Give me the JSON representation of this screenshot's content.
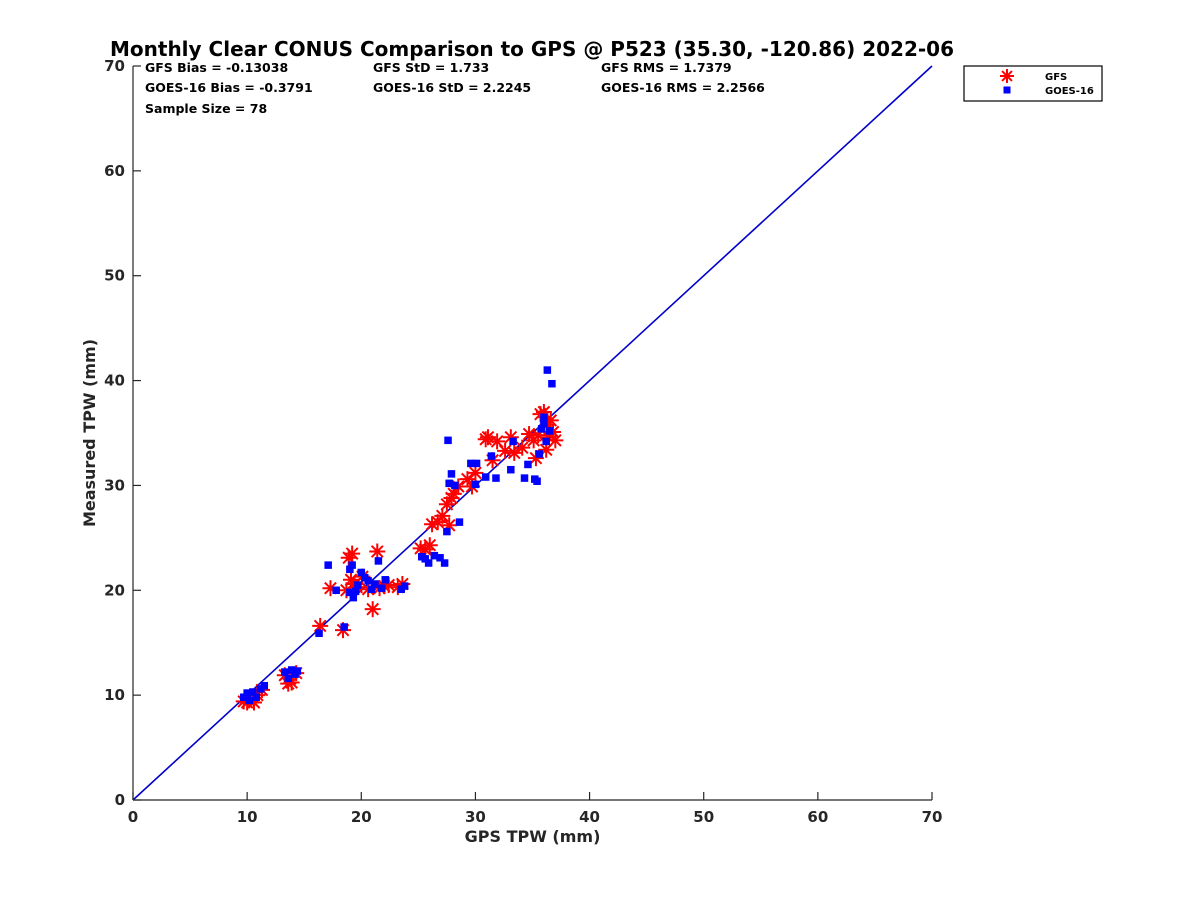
{
  "chart_data": {
    "type": "scatter",
    "title": "Monthly Clear CONUS Comparison to GPS @ P523 (35.30, -120.86) 2022-06",
    "xlabel": "GPS TPW (mm)",
    "ylabel": "Measured TPW (mm)",
    "xlim": [
      0,
      70
    ],
    "ylim": [
      0,
      70
    ],
    "xticks": [
      0,
      10,
      20,
      30,
      40,
      50,
      60,
      70
    ],
    "yticks": [
      0,
      10,
      20,
      30,
      40,
      50,
      60,
      70
    ],
    "grid": false,
    "legend_position": "outside-top-right",
    "stats": [
      [
        "GFS Bias = -0.13038",
        "GFS StD = 1.733",
        "GFS RMS = 1.7379"
      ],
      [
        "GOES-16 Bias = -0.3791",
        "GOES-16 StD = 2.2245",
        "GOES-16 RMS = 2.2566"
      ],
      [
        "Sample Size = 78",
        "",
        ""
      ]
    ],
    "reference_line": {
      "x": [
        0,
        70
      ],
      "y": [
        0,
        70
      ],
      "color": "#0000cc"
    },
    "series": [
      {
        "name": "GFS",
        "marker": "asterisk",
        "color": "#ff0000",
        "points": [
          [
            9.7,
            9.4
          ],
          [
            10.0,
            9.3
          ],
          [
            10.3,
            9.6
          ],
          [
            10.6,
            9.3
          ],
          [
            10.9,
            10.0
          ],
          [
            11.3,
            10.5
          ],
          [
            13.3,
            11.9
          ],
          [
            13.6,
            11.1
          ],
          [
            13.9,
            11.2
          ],
          [
            14.3,
            12.1
          ],
          [
            16.4,
            16.6
          ],
          [
            17.3,
            20.2
          ],
          [
            18.4,
            16.2
          ],
          [
            18.7,
            20.0
          ],
          [
            18.9,
            23.1
          ],
          [
            19.2,
            23.5
          ],
          [
            19.1,
            21.0
          ],
          [
            19.4,
            20.6
          ],
          [
            19.6,
            20.3
          ],
          [
            20.1,
            21.3
          ],
          [
            20.6,
            20.1
          ],
          [
            21.0,
            18.2
          ],
          [
            21.4,
            23.7
          ],
          [
            21.6,
            20.2
          ],
          [
            22.0,
            20.4
          ],
          [
            22.4,
            20.5
          ],
          [
            23.2,
            20.3
          ],
          [
            23.6,
            20.6
          ],
          [
            25.2,
            24.0
          ],
          [
            25.6,
            23.9
          ],
          [
            26.0,
            24.3
          ],
          [
            26.2,
            26.3
          ],
          [
            26.7,
            26.5
          ],
          [
            27.1,
            27.1
          ],
          [
            27.5,
            28.2
          ],
          [
            27.7,
            26.2
          ],
          [
            27.9,
            28.8
          ],
          [
            28.1,
            29.2
          ],
          [
            28.5,
            29.9
          ],
          [
            29.3,
            30.6
          ],
          [
            29.7,
            29.9
          ],
          [
            30.0,
            31.2
          ],
          [
            31.1,
            34.6
          ],
          [
            30.9,
            34.4
          ],
          [
            31.5,
            32.4
          ],
          [
            31.9,
            34.2
          ],
          [
            32.6,
            33.3
          ],
          [
            33.1,
            34.6
          ],
          [
            33.4,
            33.1
          ],
          [
            34.1,
            33.6
          ],
          [
            34.7,
            34.9
          ],
          [
            35.1,
            34.3
          ],
          [
            35.3,
            32.6
          ],
          [
            35.5,
            34.8
          ],
          [
            35.7,
            36.8
          ],
          [
            36.0,
            37.0
          ],
          [
            36.2,
            33.4
          ],
          [
            36.4,
            34.6
          ],
          [
            36.6,
            36.2
          ],
          [
            36.8,
            35.1
          ],
          [
            37.0,
            34.3
          ],
          [
            36.3,
            35.8
          ]
        ]
      },
      {
        "name": "GOES-16",
        "marker": "square",
        "color": "#0000ff",
        "points": [
          [
            9.7,
            9.8
          ],
          [
            10.0,
            10.2
          ],
          [
            10.2,
            9.5
          ],
          [
            10.5,
            10.3
          ],
          [
            10.8,
            9.8
          ],
          [
            11.2,
            10.6
          ],
          [
            11.5,
            10.9
          ],
          [
            13.3,
            12.2
          ],
          [
            13.6,
            11.6
          ],
          [
            13.9,
            12.4
          ],
          [
            14.2,
            12.0
          ],
          [
            14.4,
            12.3
          ],
          [
            16.3,
            15.9
          ],
          [
            17.1,
            22.4
          ],
          [
            17.8,
            20.0
          ],
          [
            18.5,
            16.5
          ],
          [
            19.0,
            22.0
          ],
          [
            19.2,
            22.4
          ],
          [
            19.0,
            19.8
          ],
          [
            19.3,
            19.3
          ],
          [
            19.5,
            19.9
          ],
          [
            19.7,
            20.5
          ],
          [
            20.0,
            21.7
          ],
          [
            20.3,
            21.2
          ],
          [
            20.6,
            20.9
          ],
          [
            20.9,
            20.1
          ],
          [
            21.2,
            20.6
          ],
          [
            21.5,
            22.8
          ],
          [
            21.8,
            20.2
          ],
          [
            22.1,
            21.0
          ],
          [
            23.5,
            20.1
          ],
          [
            23.8,
            20.4
          ],
          [
            25.3,
            23.2
          ],
          [
            25.6,
            23.0
          ],
          [
            25.9,
            22.6
          ],
          [
            26.4,
            23.3
          ],
          [
            26.9,
            23.1
          ],
          [
            27.3,
            22.6
          ],
          [
            27.5,
            25.6
          ],
          [
            27.7,
            30.2
          ],
          [
            27.6,
            34.3
          ],
          [
            27.9,
            31.1
          ],
          [
            28.2,
            30.0
          ],
          [
            28.6,
            26.5
          ],
          [
            29.6,
            32.1
          ],
          [
            30.1,
            32.1
          ],
          [
            30.0,
            30.1
          ],
          [
            30.9,
            30.8
          ],
          [
            31.4,
            32.8
          ],
          [
            31.8,
            30.7
          ],
          [
            33.1,
            31.5
          ],
          [
            33.3,
            34.2
          ],
          [
            34.3,
            30.7
          ],
          [
            34.6,
            32.0
          ],
          [
            35.2,
            30.6
          ],
          [
            35.4,
            30.4
          ],
          [
            35.6,
            33.0
          ],
          [
            35.8,
            35.4
          ],
          [
            36.0,
            36.5
          ],
          [
            36.2,
            34.2
          ],
          [
            36.3,
            41.0
          ],
          [
            36.5,
            35.2
          ],
          [
            36.7,
            39.7
          ],
          [
            36.0,
            35.9
          ]
        ]
      }
    ]
  }
}
